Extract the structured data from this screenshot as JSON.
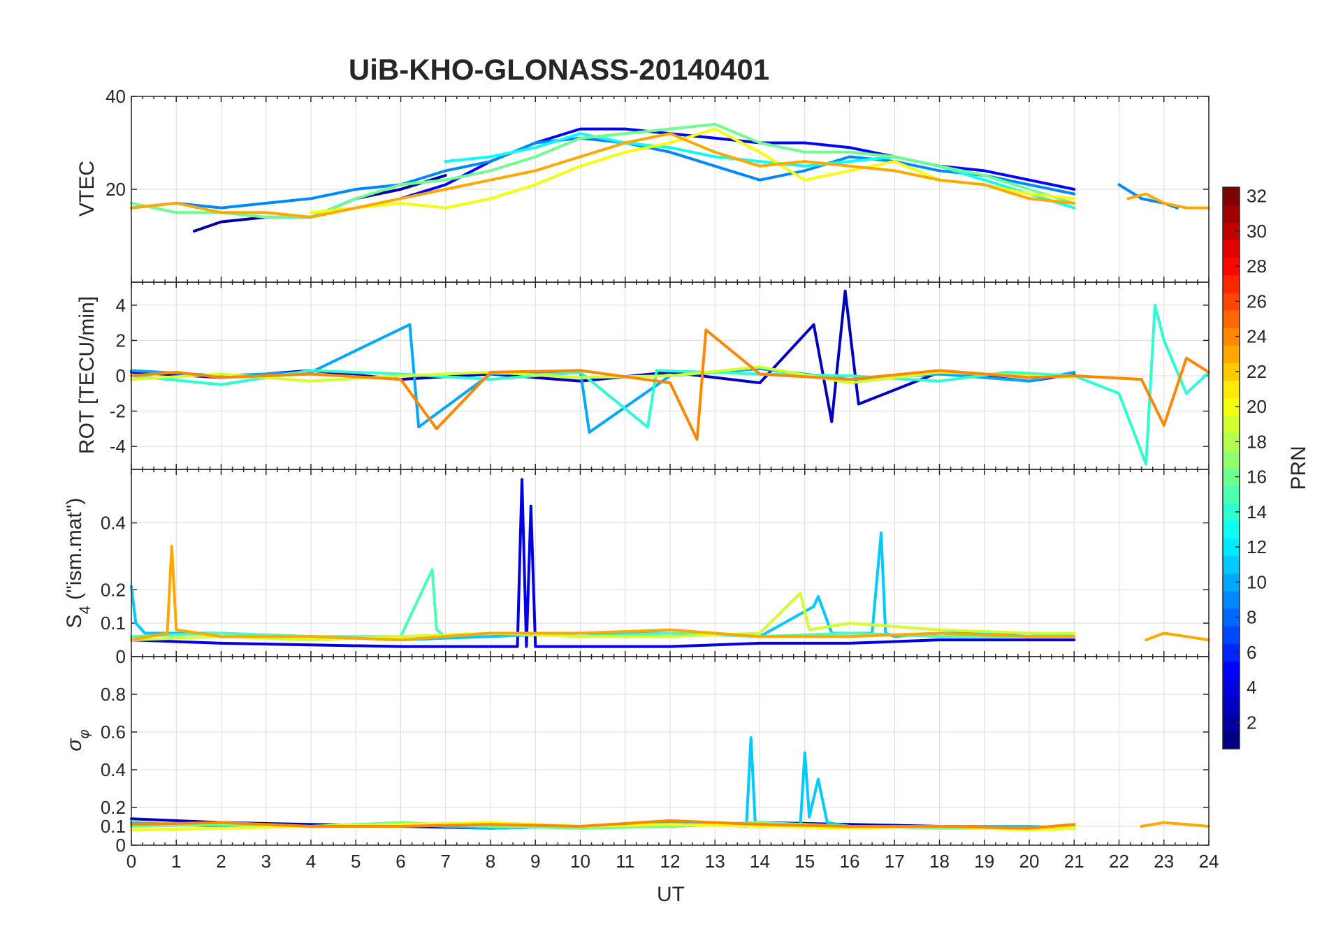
{
  "chart_data": {
    "type": "line",
    "title": "UiB-KHO-GLONASS-20140401",
    "xlabel": "UT",
    "xlim": [
      0,
      24
    ],
    "xticks": [
      0,
      1,
      2,
      3,
      4,
      5,
      6,
      7,
      8,
      9,
      10,
      11,
      12,
      13,
      14,
      15,
      16,
      17,
      18,
      19,
      20,
      21,
      22,
      23,
      24
    ],
    "panels": [
      {
        "ylabel": "VTEC",
        "ylim": [
          0,
          40
        ],
        "yticks": [
          20,
          40
        ],
        "series": [
          {
            "prn": 2,
            "x": [
              1.4,
              2,
              3,
              4,
              5,
              6,
              7
            ],
            "y": [
              11,
              13,
              14,
              14,
              18,
              20,
              23
            ]
          },
          {
            "prn": 5,
            "x": [
              6,
              7,
              8,
              9,
              10,
              11,
              12,
              13,
              14,
              15,
              16,
              17,
              18,
              19,
              20,
              21
            ],
            "y": [
              18,
              21,
              26,
              30,
              33,
              33,
              32,
              31,
              30,
              30,
              29,
              27,
              25,
              24,
              22,
              20
            ]
          },
          {
            "prn": 9,
            "x": [
              0,
              1,
              2,
              3,
              4,
              5,
              6,
              7,
              8,
              9,
              10,
              11,
              12,
              13,
              14,
              15,
              16,
              17,
              18,
              19,
              20,
              21
            ],
            "y": [
              16,
              17,
              16,
              17,
              18,
              20,
              21,
              24,
              26,
              30,
              31,
              30,
              28,
              25,
              22,
              24,
              27,
              26,
              24,
              23,
              21,
              19
            ]
          },
          {
            "prn": 13,
            "x": [
              7,
              8,
              9,
              10,
              11,
              12,
              13,
              14,
              15,
              16,
              17,
              18,
              19,
              20,
              21
            ],
            "y": [
              26,
              27,
              29,
              32,
              30,
              29,
              27,
              26,
              25,
              26,
              27,
              25,
              22,
              19,
              16
            ]
          },
          {
            "prn": 16,
            "x": [
              0,
              1,
              2,
              3,
              4,
              5,
              6,
              7,
              8,
              9,
              10,
              11,
              12,
              13,
              14,
              15,
              16,
              17,
              18,
              19,
              20,
              21
            ],
            "y": [
              17,
              15,
              15,
              14,
              14,
              18,
              21,
              22,
              24,
              27,
              31,
              32,
              33,
              34,
              30,
              28,
              28,
              27,
              25,
              23,
              20,
              17
            ]
          },
          {
            "prn": 20,
            "x": [
              4,
              5,
              6,
              7,
              8,
              9,
              10,
              11,
              12,
              13,
              14,
              15,
              16,
              17,
              18,
              19,
              20,
              21
            ],
            "y": [
              15,
              16,
              17,
              16,
              18,
              21,
              25,
              28,
              30,
              33,
              28,
              22,
              24,
              26,
              22,
              21,
              19,
              18
            ]
          },
          {
            "prn": 23,
            "x": [
              0,
              1,
              2,
              3,
              4,
              5,
              6,
              7,
              8,
              9,
              10,
              11,
              12,
              13,
              14,
              15,
              16,
              17,
              18,
              19,
              20,
              21
            ],
            "y": [
              16,
              17,
              15,
              15,
              14,
              16,
              18,
              20,
              22,
              24,
              27,
              30,
              32,
              28,
              25,
              26,
              25,
              24,
              22,
              21,
              18,
              17
            ]
          },
          {
            "prn": 9,
            "x": [
              22,
              22.5,
              23,
              23.3
            ],
            "y": [
              21,
              18,
              17,
              16
            ]
          },
          {
            "prn": 23,
            "x": [
              22.2,
              22.6,
              23,
              23.5,
              24
            ],
            "y": [
              18,
              19,
              17,
              16,
              16
            ]
          }
        ]
      },
      {
        "ylabel": "ROT [TECU/min]",
        "ylim": [
          -5.3,
          5.3
        ],
        "yticks": [
          -4,
          -2,
          0,
          2,
          4
        ],
        "series": [
          {
            "prn": 3,
            "x": [
              0,
              2,
              4,
              6,
              8,
              10,
              12,
              14,
              15.2,
              15.6,
              15.9,
              16.2,
              18,
              20,
              21
            ],
            "y": [
              0.2,
              -0.1,
              0.3,
              -0.2,
              0.1,
              -0.3,
              0.2,
              -0.4,
              2.9,
              -2.6,
              4.8,
              -1.6,
              0.2,
              -0.3,
              0.1
            ]
          },
          {
            "prn": 10,
            "x": [
              0,
              2,
              4,
              6.2,
              6.4,
              8,
              10,
              10.2,
              12,
              14,
              16,
              18,
              20,
              21
            ],
            "y": [
              0.3,
              0,
              0.2,
              2.9,
              -2.9,
              0.1,
              0.3,
              -3.2,
              0,
              0.4,
              -0.2,
              0.1,
              -0.3,
              0.2
            ]
          },
          {
            "prn": 14,
            "x": [
              0,
              2,
              4,
              6,
              8,
              10,
              11.5,
              11.7,
              14,
              16,
              18,
              19.5,
              21,
              22,
              22.6,
              22.8,
              23,
              23.5,
              24
            ],
            "y": [
              0,
              -0.5,
              0.3,
              0.1,
              -0.2,
              0.2,
              -2.9,
              0.3,
              0.1,
              0,
              -0.3,
              0.2,
              0,
              -1,
              -5,
              4,
              2,
              -1,
              0.2
            ]
          },
          {
            "prn": 19,
            "x": [
              0,
              2,
              4,
              6,
              8,
              10,
              12,
              14,
              16,
              18,
              20,
              21
            ],
            "y": [
              -0.2,
              0.1,
              -0.3,
              0,
              0.2,
              -0.1,
              0,
              0.5,
              -0.4,
              0.2,
              0,
              -0.1
            ]
          },
          {
            "prn": 24,
            "x": [
              0,
              1,
              2,
              4,
              6,
              6.8,
              8,
              10,
              12,
              12.6,
              12.8,
              14,
              16,
              18,
              20,
              21,
              22.5,
              23,
              23.5,
              24
            ],
            "y": [
              0,
              0.2,
              -0.1,
              0.1,
              -0.2,
              -3,
              0.2,
              0.3,
              -0.4,
              -3.6,
              2.6,
              0.1,
              -0.2,
              0.3,
              -0.1,
              0,
              -0.2,
              -2.8,
              1,
              0.2
            ]
          }
        ]
      },
      {
        "ylabel": "S4 (\"ism.mat\")",
        "ylim": [
          0,
          0.56
        ],
        "yticks": [
          0,
          0.1,
          0.2,
          0.4
        ],
        "series": [
          {
            "prn": 4,
            "x": [
              0,
              2,
              4,
              6,
              8,
              8.6,
              8.7,
              8.8,
              8.9,
              9,
              10,
              12,
              14,
              16,
              18,
              20,
              21
            ],
            "y": [
              0.05,
              0.04,
              0.035,
              0.03,
              0.03,
              0.03,
              0.53,
              0.03,
              0.45,
              0.03,
              0.03,
              0.03,
              0.04,
              0.04,
              0.05,
              0.05,
              0.05
            ]
          },
          {
            "prn": 11,
            "x": [
              0,
              0.1,
              0.3,
              2,
              4,
              6,
              8,
              10,
              12,
              14,
              15.2,
              15.3,
              15.6,
              16.5,
              16.7,
              16.8,
              17,
              18,
              20,
              21
            ],
            "y": [
              0.21,
              0.1,
              0.07,
              0.07,
              0.06,
              0.05,
              0.06,
              0.07,
              0.07,
              0.06,
              0.15,
              0.18,
              0.07,
              0.07,
              0.37,
              0.07,
              0.06,
              0.07,
              0.07,
              0.06
            ]
          },
          {
            "prn": 15,
            "x": [
              0,
              2,
              4,
              6,
              6.7,
              6.8,
              7,
              8,
              10,
              12,
              14,
              16,
              18,
              20,
              21
            ],
            "y": [
              0.06,
              0.07,
              0.06,
              0.06,
              0.26,
              0.08,
              0.06,
              0.07,
              0.06,
              0.07,
              0.06,
              0.07,
              0.06,
              0.06,
              0.07
            ]
          },
          {
            "prn": 19,
            "x": [
              0,
              2,
              4,
              6,
              8,
              10,
              12,
              14,
              14.9,
              15.1,
              16,
              18,
              20,
              21
            ],
            "y": [
              0.05,
              0.06,
              0.05,
              0.06,
              0.07,
              0.06,
              0.06,
              0.07,
              0.19,
              0.08,
              0.1,
              0.08,
              0.07,
              0.07
            ]
          },
          {
            "prn": 23,
            "x": [
              0,
              0.8,
              0.9,
              1,
              2,
              4,
              6,
              8,
              10,
              12,
              14,
              16,
              18,
              20,
              21
            ],
            "y": [
              0.05,
              0.07,
              0.33,
              0.08,
              0.06,
              0.06,
              0.05,
              0.07,
              0.07,
              0.08,
              0.06,
              0.06,
              0.07,
              0.06,
              0.06
            ]
          },
          {
            "prn": 23,
            "x": [
              22.6,
              23,
              23.5,
              24
            ],
            "y": [
              0.05,
              0.07,
              0.06,
              0.05
            ]
          }
        ]
      },
      {
        "ylabel": "σφ",
        "ylim": [
          0,
          1
        ],
        "yticks": [
          0,
          0.1,
          0.2,
          0.4,
          0.6,
          0.8
        ],
        "series": [
          {
            "prn": 3,
            "x": [
              0,
              2,
              4,
              6,
              8,
              10,
              12,
              14,
              16,
              18,
              20,
              21
            ],
            "y": [
              0.14,
              0.12,
              0.11,
              0.1,
              0.09,
              0.1,
              0.1,
              0.12,
              0.11,
              0.1,
              0.09,
              0.1
            ]
          },
          {
            "prn": 11,
            "x": [
              0,
              2,
              4,
              6,
              8,
              10,
              12,
              13.7,
              13.8,
              13.9,
              14.9,
              15,
              15.1,
              15.3,
              15.5,
              16,
              18,
              20,
              21
            ],
            "y": [
              0.12,
              0.1,
              0.1,
              0.11,
              0.09,
              0.1,
              0.12,
              0.1,
              0.57,
              0.1,
              0.1,
              0.49,
              0.15,
              0.35,
              0.12,
              0.1,
              0.1,
              0.1,
              0.09
            ]
          },
          {
            "prn": 16,
            "x": [
              0,
              2,
              4,
              6,
              8,
              10,
              12,
              14,
              16,
              18,
              20,
              21
            ],
            "y": [
              0.1,
              0.11,
              0.1,
              0.12,
              0.1,
              0.09,
              0.1,
              0.12,
              0.1,
              0.09,
              0.09,
              0.1
            ]
          },
          {
            "prn": 20,
            "x": [
              0,
              2,
              4,
              6,
              8,
              10,
              12,
              14,
              16,
              18,
              20,
              21
            ],
            "y": [
              0.08,
              0.09,
              0.1,
              0.11,
              0.12,
              0.1,
              0.11,
              0.1,
              0.09,
              0.1,
              0.08,
              0.09
            ]
          },
          {
            "prn": 24,
            "x": [
              0,
              2,
              4,
              6,
              8,
              10,
              12,
              14,
              16,
              18,
              20,
              21
            ],
            "y": [
              0.11,
              0.12,
              0.1,
              0.1,
              0.11,
              0.1,
              0.13,
              0.11,
              0.1,
              0.1,
              0.09,
              0.11
            ]
          },
          {
            "prn": 23,
            "x": [
              22.5,
              23,
              23.5,
              24
            ],
            "y": [
              0.1,
              0.12,
              0.11,
              0.1
            ]
          }
        ]
      }
    ],
    "colorbar": {
      "label": "PRN",
      "range": [
        1,
        32
      ],
      "ticks": [
        2,
        4,
        6,
        8,
        10,
        12,
        14,
        16,
        18,
        20,
        22,
        24,
        26,
        28,
        30,
        32
      ],
      "colormap": "jet"
    }
  }
}
